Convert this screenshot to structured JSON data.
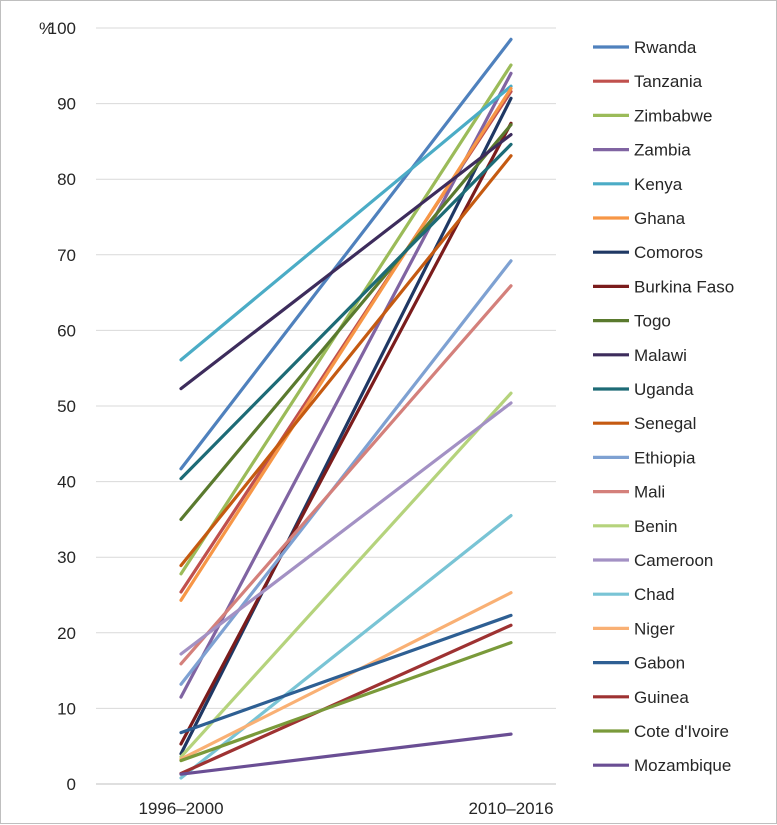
{
  "chart_data": {
    "type": "line",
    "categories": [
      "1996–2000",
      "2010–2016"
    ],
    "y_axis_prefix_label": "%",
    "ylim": [
      0,
      100
    ],
    "yticks": [
      0,
      10,
      20,
      30,
      40,
      50,
      60,
      70,
      80,
      90,
      100
    ],
    "grid": true,
    "legend_position": "right",
    "series": [
      {
        "name": "Rwanda",
        "color": "#4f81bd",
        "values": [
          41.7,
          98.5
        ]
      },
      {
        "name": "Tanzania",
        "color": "#c0504d",
        "values": [
          25.4,
          91.6
        ]
      },
      {
        "name": "Zimbabwe",
        "color": "#9bbb59",
        "values": [
          27.8,
          95.1
        ]
      },
      {
        "name": "Zambia",
        "color": "#8064a2",
        "values": [
          11.5,
          94.0
        ]
      },
      {
        "name": "Kenya",
        "color": "#4bacc6",
        "values": [
          56.1,
          92.3
        ]
      },
      {
        "name": "Ghana",
        "color": "#f79646",
        "values": [
          24.3,
          92.0
        ]
      },
      {
        "name": "Comoros",
        "color": "#1f3864",
        "values": [
          4.0,
          90.7
        ]
      },
      {
        "name": "Burkina Faso",
        "color": "#7b1c1c",
        "values": [
          5.3,
          87.4
        ]
      },
      {
        "name": "Togo",
        "color": "#5a7a2e",
        "values": [
          35.0,
          87.2
        ]
      },
      {
        "name": "Malawi",
        "color": "#3d2c5c",
        "values": [
          52.3,
          85.9
        ]
      },
      {
        "name": "Uganda",
        "color": "#1d6b76",
        "values": [
          40.4,
          84.6
        ]
      },
      {
        "name": "Senegal",
        "color": "#c55a11",
        "values": [
          28.9,
          83.1
        ]
      },
      {
        "name": "Ethiopia",
        "color": "#7ea1d2",
        "values": [
          13.2,
          69.2
        ]
      },
      {
        "name": "Mali",
        "color": "#d4807b",
        "values": [
          15.9,
          65.9
        ]
      },
      {
        "name": "Benin",
        "color": "#b5d37c",
        "values": [
          3.6,
          51.7
        ]
      },
      {
        "name": "Cameroon",
        "color": "#a391c4",
        "values": [
          17.2,
          50.4
        ]
      },
      {
        "name": "Chad",
        "color": "#79c4d5",
        "values": [
          0.8,
          35.5
        ]
      },
      {
        "name": "Niger",
        "color": "#f9b074",
        "values": [
          3.3,
          25.3
        ]
      },
      {
        "name": "Gabon",
        "color": "#2e5f93",
        "values": [
          6.8,
          22.3
        ]
      },
      {
        "name": "Guinea",
        "color": "#9e3232",
        "values": [
          1.4,
          21.0
        ]
      },
      {
        "name": "Cote d'Ivoire",
        "color": "#7a9a3a",
        "values": [
          3.1,
          18.7
        ]
      },
      {
        "name": "Mozambique",
        "color": "#6a4e94",
        "values": [
          1.3,
          6.6
        ]
      }
    ]
  }
}
